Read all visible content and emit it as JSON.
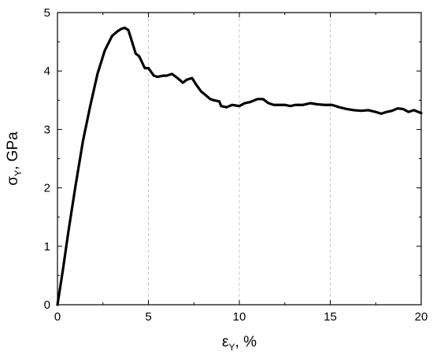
{
  "chart_data": {
    "type": "line",
    "title": "",
    "xlabel": {
      "symbol": "ε",
      "subscript": "Y",
      "unit": ", %"
    },
    "ylabel": {
      "symbol": "σ",
      "subscript": "Y",
      "unit": ", GPa"
    },
    "xlim": [
      0,
      20
    ],
    "ylim": [
      0,
      5
    ],
    "x_ticks": [
      "0",
      "5",
      "10",
      "15",
      "20"
    ],
    "y_ticks": [
      "0",
      "1",
      "2",
      "3",
      "4",
      "5"
    ],
    "grid": "vertical-dashed",
    "legend": "none",
    "series": [
      {
        "color": "#000000",
        "x": [
          0,
          0.3,
          0.6,
          1.0,
          1.4,
          1.8,
          2.2,
          2.6,
          3.0,
          3.3,
          3.5,
          3.7,
          3.9,
          4.1,
          4.3,
          4.5,
          4.8,
          5.0,
          5.3,
          5.5,
          5.8,
          6.0,
          6.3,
          6.6,
          6.9,
          7.1,
          7.4,
          7.6,
          7.9,
          8.1,
          8.4,
          8.6,
          8.9,
          9.0,
          9.3,
          9.6,
          10.0,
          10.3,
          10.6,
          11.0,
          11.3,
          11.6,
          11.9,
          12.2,
          12.5,
          12.8,
          13.1,
          13.5,
          13.9,
          14.3,
          14.7,
          15.1,
          15.5,
          15.9,
          16.3,
          16.7,
          17.1,
          17.5,
          17.8,
          18.1,
          18.4,
          18.7,
          19.0,
          19.3,
          19.6,
          20.0
        ],
        "values": [
          0,
          0.6,
          1.25,
          2.05,
          2.8,
          3.4,
          3.95,
          4.35,
          4.6,
          4.68,
          4.72,
          4.74,
          4.7,
          4.5,
          4.3,
          4.25,
          4.05,
          4.05,
          3.92,
          3.9,
          3.92,
          3.92,
          3.95,
          3.88,
          3.8,
          3.85,
          3.88,
          3.78,
          3.65,
          3.6,
          3.52,
          3.5,
          3.48,
          3.4,
          3.38,
          3.42,
          3.4,
          3.45,
          3.47,
          3.52,
          3.52,
          3.45,
          3.42,
          3.42,
          3.42,
          3.4,
          3.42,
          3.42,
          3.45,
          3.43,
          3.42,
          3.42,
          3.38,
          3.35,
          3.33,
          3.32,
          3.33,
          3.3,
          3.27,
          3.3,
          3.32,
          3.36,
          3.35,
          3.3,
          3.33,
          3.28
        ]
      }
    ]
  }
}
